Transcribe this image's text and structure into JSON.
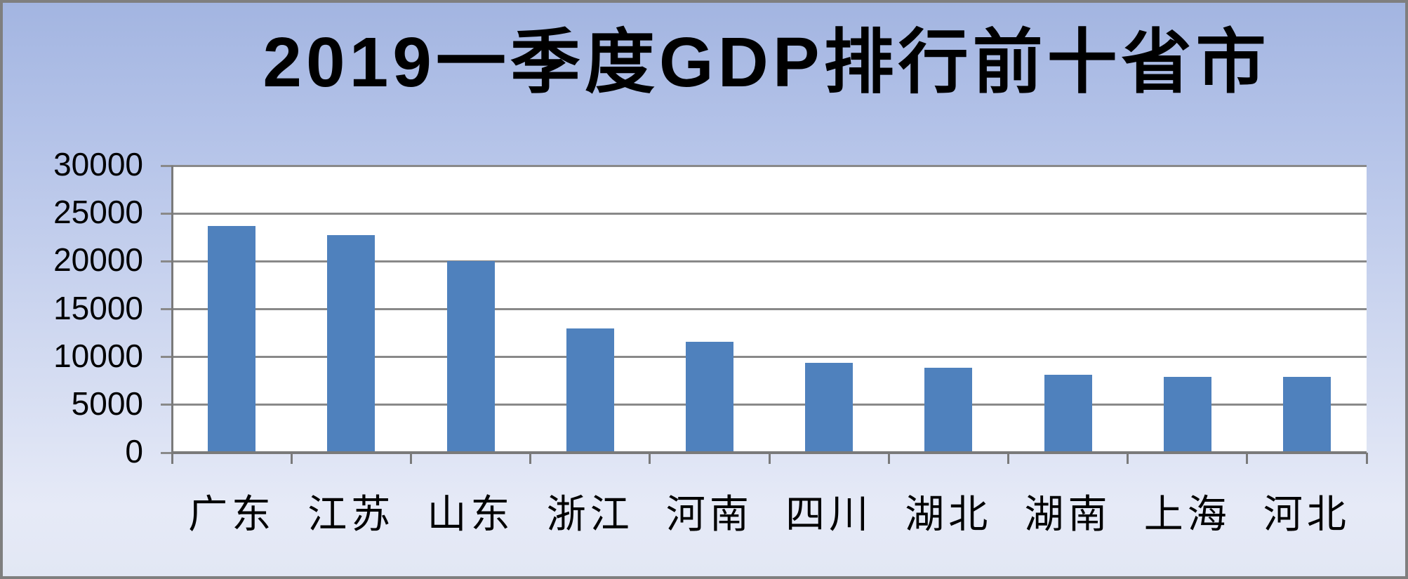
{
  "chart_data": {
    "type": "bar",
    "title": "2019一季度GDP排行前十省市",
    "categories": [
      "广东",
      "江苏",
      "山东",
      "浙江",
      "河南",
      "四川",
      "湖北",
      "湖南",
      "上海",
      "河北"
    ],
    "values": [
      23700,
      22750,
      20000,
      13000,
      11600,
      9400,
      8900,
      8150,
      7950,
      7950
    ],
    "xlabel": "",
    "ylabel": "",
    "ylim": [
      0,
      30000
    ],
    "yticks": [
      30000,
      25000,
      20000,
      15000,
      10000,
      5000,
      0
    ],
    "ytick_labels": [
      "30000",
      "25000",
      "20000",
      "15000",
      "10000",
      "5000",
      "0"
    ],
    "grid": "horizontal",
    "legend": "none",
    "colors": {
      "bar_fill": "#4f81bd",
      "gridline": "#898989",
      "axis": "#7a7a7a",
      "plot_background": "#ffffff",
      "background_top": "#a3b5e1",
      "background_bottom": "#e6eaf7",
      "frame_border": "#7f7f7f",
      "text": "#000000"
    }
  }
}
